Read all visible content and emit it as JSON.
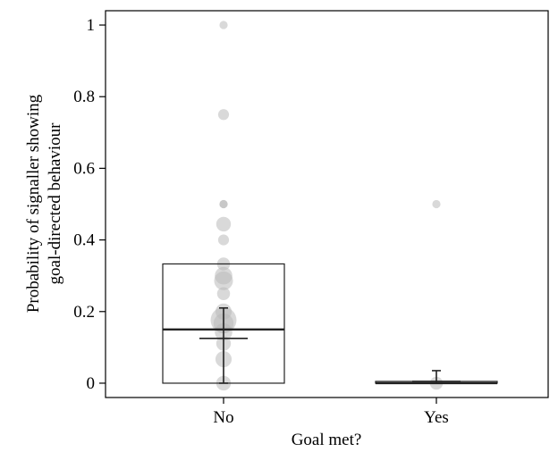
{
  "chart_data": {
    "type": "boxplot",
    "title": "",
    "xlabel": "Goal met?",
    "ylabel_lines": [
      "Probability of signaller showing",
      "goal-directed behaviour"
    ],
    "categories": [
      "No",
      "Yes"
    ],
    "ylim": [
      -0.04,
      1.04
    ],
    "yticks": [
      0,
      0.2,
      0.4,
      0.6,
      0.8,
      1
    ],
    "ytick_labels": [
      "0",
      "0.2",
      "0.4",
      "0.6",
      "0.8",
      "1"
    ],
    "grid": false,
    "legend": "none",
    "boxes": [
      {
        "category": "No",
        "q1": 0,
        "median": 0.15,
        "q3": 0.333
      },
      {
        "category": "Yes",
        "q1": 0,
        "median": 0,
        "q3": 0.005
      }
    ],
    "means": [
      {
        "category": "No",
        "mean": 0.125,
        "ci_low": 0.0,
        "ci_high": 0.21
      },
      {
        "category": "Yes",
        "mean": 0.005,
        "ci_low": 0.0,
        "ci_high": 0.035
      }
    ],
    "points": [
      {
        "category": "No",
        "y": 1.0,
        "n": 1
      },
      {
        "category": "No",
        "y": 0.75,
        "n": 2
      },
      {
        "category": "No",
        "y": 0.5,
        "n": 1
      },
      {
        "category": "No",
        "y": 0.5,
        "n": 1
      },
      {
        "category": "No",
        "y": 0.444,
        "n": 4
      },
      {
        "category": "No",
        "y": 0.4,
        "n": 2
      },
      {
        "category": "No",
        "y": 0.333,
        "n": 3
      },
      {
        "category": "No",
        "y": 0.3,
        "n": 6
      },
      {
        "category": "No",
        "y": 0.286,
        "n": 7
      },
      {
        "category": "No",
        "y": 0.25,
        "n": 3
      },
      {
        "category": "No",
        "y": 0.2,
        "n": 5
      },
      {
        "category": "No",
        "y": 0.176,
        "n": 14
      },
      {
        "category": "No",
        "y": 0.167,
        "n": 8
      },
      {
        "category": "No",
        "y": 0.143,
        "n": 6
      },
      {
        "category": "No",
        "y": 0.111,
        "n": 4
      },
      {
        "category": "No",
        "y": 0.067,
        "n": 5
      },
      {
        "category": "No",
        "y": 0.0,
        "n": 4
      },
      {
        "category": "Yes",
        "y": 0.5,
        "n": 1
      },
      {
        "category": "Yes",
        "y": 0.0,
        "n": 3
      }
    ],
    "colors": {
      "point": "#b9b9b9",
      "box": "#222222",
      "axis": "#000000"
    }
  }
}
